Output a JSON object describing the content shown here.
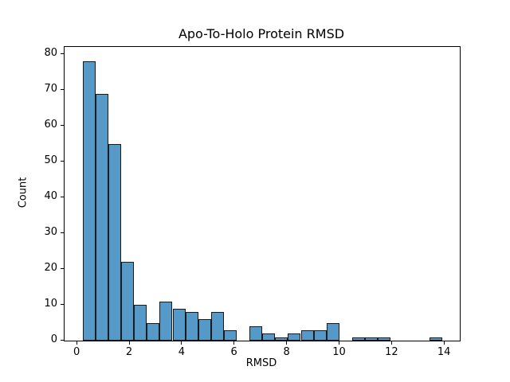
{
  "chart_data": {
    "type": "bar",
    "subtype": "histogram",
    "title": "Apo-To-Holo Protein RMSD",
    "xlabel": "RMSD",
    "ylabel": "Count",
    "bin_start": 0.2,
    "bin_width": 0.489,
    "counts": [
      78,
      69,
      55,
      22,
      10,
      5,
      11,
      9,
      8,
      6,
      8,
      3,
      0,
      4,
      2,
      1,
      2,
      3,
      3,
      5,
      0,
      1,
      1,
      1,
      0,
      0,
      0,
      1
    ],
    "xticks": [
      0,
      2,
      4,
      6,
      8,
      10,
      12,
      14
    ],
    "yticks": [
      0,
      10,
      20,
      30,
      40,
      50,
      60,
      70,
      80
    ],
    "xlim": [
      -0.49,
      14.57
    ],
    "ylim": [
      0,
      82
    ],
    "grid": false,
    "legend_position": "none",
    "bar_color": "#5499c7",
    "bar_edge_color": "#1a1a1a",
    "spine_color": "#000000",
    "background_color": "#ffffff"
  }
}
